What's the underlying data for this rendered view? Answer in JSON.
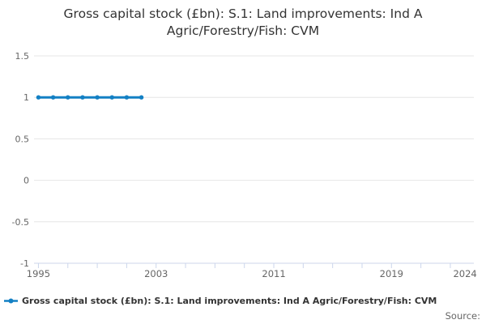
{
  "title": {
    "line1": "Gross capital stock (£bn): S.1: Land improvements: Ind A",
    "line2": "Agric/Forestry/Fish: CVM",
    "full": "Gross capital stock (£bn): S.1: Land improvements: Ind A Agric/Forestry/Fish: CVM"
  },
  "legend": {
    "label": "Gross capital stock (£bn): S.1: Land improvements: Ind A Agric/Forestry/Fish: CVM",
    "marker": "line-with-dot"
  },
  "source": {
    "label": "Source:"
  },
  "colors": {
    "series": "#1380c4",
    "axis_line": "#ccd6eb",
    "gridline": "#e6e6e6",
    "tick_label": "#666666",
    "title_text": "#333333",
    "legend_text": "#333333",
    "source_text": "#666666",
    "background": "#ffffff"
  },
  "chart_data": {
    "type": "line",
    "title": "Gross capital stock (£bn): S.1: Land improvements: Ind A Agric/Forestry/Fish: CVM",
    "xlabel": "",
    "ylabel": "",
    "x": [
      1995,
      1996,
      1997,
      1998,
      1999,
      2000,
      2001,
      2002
    ],
    "series": [
      {
        "name": "Gross capital stock (£bn): S.1: Land improvements: Ind A Agric/Forestry/Fish: CVM",
        "values": [
          1,
          1,
          1,
          1,
          1,
          1,
          1,
          1
        ]
      }
    ],
    "ylim": [
      -1,
      1.5
    ],
    "xlim": [
      1994.7,
      2024.6
    ],
    "y_ticks": [
      1.5,
      1,
      0.5,
      0,
      -0.5,
      -1
    ],
    "y_tick_labels": [
      "1.5",
      "1",
      "0.5",
      "0",
      "-0.5",
      "-1"
    ],
    "x_minor_tick_interval": 2,
    "x_minor_tick_range": [
      1995,
      2023
    ],
    "x_label_ticks": [
      1995,
      2003,
      2011,
      2019,
      2024
    ],
    "grid": true,
    "legend_position": "bottom-left",
    "marker": "circle"
  }
}
